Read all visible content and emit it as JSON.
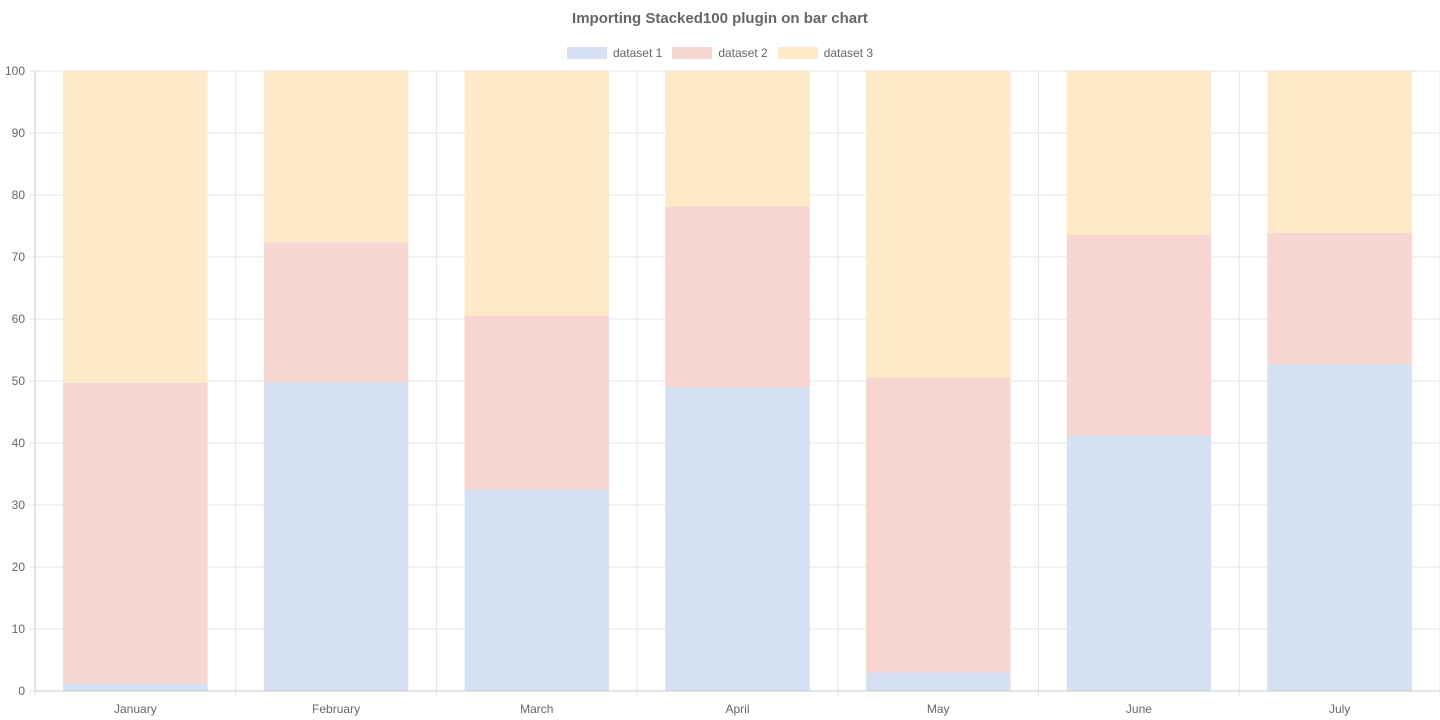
{
  "chart_data": {
    "type": "bar",
    "stacked": true,
    "title": "Importing Stacked100 plugin on bar chart",
    "xlabel": "",
    "ylabel": "",
    "ylim": [
      0,
      100
    ],
    "yticks": [
      0,
      10,
      20,
      30,
      40,
      50,
      60,
      70,
      80,
      90,
      100
    ],
    "grid": true,
    "legend_position": "top",
    "categories": [
      "January",
      "February",
      "March",
      "April",
      "May",
      "June",
      "July"
    ],
    "series": [
      {
        "name": "dataset 1",
        "color": "#d5e0f3",
        "values": [
          1.2,
          49.8,
          32.5,
          49.0,
          3.0,
          41.2,
          52.7
        ]
      },
      {
        "name": "dataset 2",
        "color": "#f7d6d1",
        "values": [
          48.5,
          22.6,
          28.1,
          29.2,
          47.5,
          32.4,
          21.2
        ]
      },
      {
        "name": "dataset 3",
        "color": "#fee9c8",
        "values": [
          50.3,
          27.6,
          39.4,
          21.8,
          49.5,
          26.4,
          26.1
        ]
      }
    ]
  }
}
